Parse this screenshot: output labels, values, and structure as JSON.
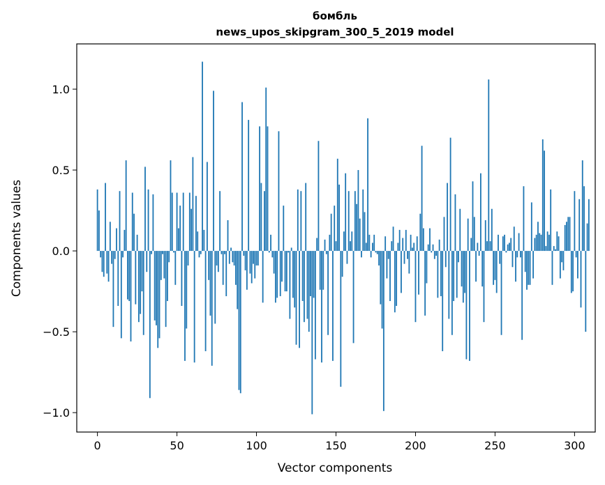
{
  "chart_data": {
    "type": "bar",
    "title": [
      "бомбль",
      "news_upos_skipgram_300_5_2019 model"
    ],
    "xlabel": "Vector components",
    "ylabel": "Components values",
    "xlim": [
      -13,
      313
    ],
    "ylim": [
      -1.12,
      1.28
    ],
    "xticks": [
      0,
      50,
      100,
      150,
      200,
      250,
      300
    ],
    "yticks": [
      -1.0,
      -0.5,
      0.0,
      0.5,
      1.0
    ],
    "ytick_labels": [
      "−1.0",
      "−0.5",
      "0.0",
      "0.5",
      "1.0"
    ],
    "grid": false,
    "legend": "none",
    "bar_color": "#1f77b4",
    "values": [
      0.38,
      0.25,
      -0.04,
      -0.13,
      -0.16,
      0.42,
      -0.14,
      -0.19,
      0.18,
      -0.08,
      -0.47,
      -0.05,
      0.14,
      -0.34,
      0.37,
      -0.54,
      -0.04,
      0.13,
      0.56,
      -0.3,
      -0.31,
      -0.56,
      0.36,
      0.23,
      -0.33,
      0.1,
      -0.44,
      -0.39,
      -0.25,
      -0.52,
      0.52,
      -0.13,
      0.38,
      -0.91,
      -0.02,
      0.35,
      -0.43,
      -0.46,
      -0.6,
      -0.54,
      -0.18,
      -0.02,
      -0.17,
      -0.47,
      -0.31,
      -0.07,
      0.56,
      0.36,
      -0.01,
      -0.21,
      0.36,
      0.14,
      0.28,
      -0.34,
      0.36,
      -0.68,
      -0.48,
      -0.09,
      0.36,
      0.26,
      0.58,
      -0.69,
      0.34,
      0.12,
      -0.04,
      -0.02,
      1.17,
      0.13,
      -0.62,
      0.55,
      -0.18,
      -0.4,
      -0.71,
      0.99,
      -0.45,
      -0.09,
      -0.13,
      0.37,
      -0.02,
      -0.21,
      -0.02,
      -0.28,
      0.19,
      -0.08,
      0.02,
      -0.07,
      -0.09,
      -0.21,
      -0.36,
      -0.86,
      -0.88,
      0.92,
      -0.03,
      -0.12,
      -0.24,
      0.81,
      -0.14,
      -0.2,
      -0.08,
      -0.17,
      -0.09,
      -0.09,
      0.77,
      0.42,
      -0.32,
      0.37,
      1.01,
      0.77,
      -0.01,
      0.1,
      -0.04,
      -0.14,
      -0.32,
      -0.29,
      0.74,
      -0.28,
      -0.19,
      0.28,
      -0.25,
      -0.25,
      -0.01,
      -0.42,
      0.02,
      -0.29,
      -0.35,
      -0.58,
      0.38,
      -0.6,
      0.37,
      -0.31,
      -0.44,
      0.42,
      -0.42,
      -0.5,
      -0.28,
      -1.01,
      -0.29,
      -0.67,
      0.08,
      0.68,
      -0.24,
      -0.69,
      -0.24,
      0.07,
      -0.02,
      -0.52,
      0.1,
      0.23,
      -0.68,
      0.28,
      0.06,
      0.57,
      0.41,
      -0.84,
      -0.16,
      0.12,
      0.48,
      -0.08,
      0.37,
      0.06,
      0.12,
      -0.57,
      0.37,
      0.29,
      0.5,
      0.2,
      -0.04,
      0.38,
      0.24,
      0.05,
      0.82,
      0.1,
      -0.04,
      0.05,
      0.1,
      -0.01,
      -0.02,
      -0.09,
      -0.33,
      -0.48,
      -0.99,
      0.09,
      -0.17,
      -0.05,
      -0.31,
      0.06,
      0.15,
      -0.38,
      -0.34,
      0.05,
      0.13,
      -0.26,
      0.08,
      -0.08,
      0.13,
      -0.05,
      -0.14,
      0.1,
      0.02,
      0.05,
      -0.44,
      0.09,
      -0.27,
      0.23,
      0.65,
      0.14,
      -0.4,
      -0.2,
      0.04,
      0.14,
      -0.01,
      0.04,
      -0.05,
      -0.03,
      -0.29,
      0.07,
      -0.28,
      -0.62,
      0.21,
      -0.1,
      0.42,
      -0.42,
      0.7,
      -0.52,
      -0.31,
      0.35,
      -0.29,
      -0.07,
      0.26,
      -0.22,
      -0.32,
      -0.26,
      -0.67,
      0.2,
      -0.68,
      0.08,
      0.43,
      0.21,
      -0.19,
      0.05,
      -0.03,
      0.48,
      -0.22,
      -0.44,
      0.19,
      0.06,
      1.06,
      0.06,
      0.26,
      -0.21,
      -0.18,
      -0.26,
      0.1,
      -0.08,
      -0.52,
      0.09,
      0.1,
      -0.01,
      0.04,
      0.05,
      0.08,
      -0.1,
      0.15,
      -0.19,
      -0.04,
      0.11,
      -0.04,
      -0.55,
      0.4,
      -0.13,
      -0.24,
      -0.21,
      -0.21,
      0.3,
      -0.17,
      0.08,
      0.1,
      0.18,
      0.11,
      0.1,
      0.69,
      0.62,
      0.03,
      0.12,
      0.1,
      0.38,
      -0.21,
      0.03,
      0.01,
      0.12,
      0.09,
      -0.17,
      -0.07,
      -0.12,
      0.16,
      0.18,
      0.21,
      0.21,
      -0.26,
      -0.25,
      0.37,
      -0.04,
      -0.17,
      0.32,
      -0.35,
      0.56,
      0.4,
      -0.5,
      0.17,
      0.32
    ]
  }
}
